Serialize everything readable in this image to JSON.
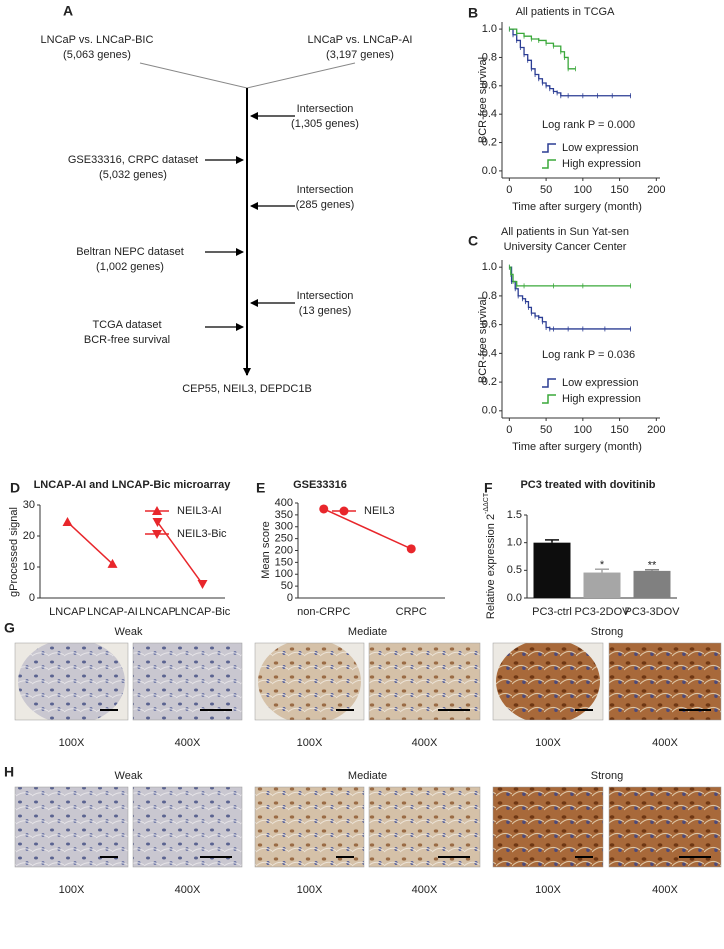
{
  "panel_a": {
    "label": "A",
    "nodes": [
      {
        "title": "LNCaP vs. LNCaP-BIC",
        "detail": "(5,063 genes)"
      },
      {
        "title": "LNCaP vs. LNCaP-AI",
        "detail": "(3,197 genes)"
      },
      {
        "title": "Intersection",
        "detail": "(1,305 genes)"
      },
      {
        "title": "GSE33316, CRPC dataset",
        "detail": "(5,032 genes)"
      },
      {
        "title": "Intersection",
        "detail": "(285 genes)"
      },
      {
        "title": "Beltran NEPC dataset",
        "detail": "(1,002 genes)"
      },
      {
        "title": "Intersection",
        "detail": "(13 genes)"
      },
      {
        "title": "TCGA dataset",
        "detail": "BCR-free survival"
      }
    ],
    "result": "CEP55, NEIL3, DEPDC1B"
  },
  "chart_data": [
    {
      "type": "line",
      "step": true,
      "label": "B",
      "title": [
        "All patients in TCGA"
      ],
      "xlabel": "Time after surgery (month)",
      "ylabel": "BCR-free survival",
      "annotation": "Log rank P = 0.000",
      "xlim": [
        -10,
        205
      ],
      "xticks": [
        0,
        50,
        100,
        150,
        200
      ],
      "ylim": [
        -0.05,
        1.05
      ],
      "yticks": [
        {
          "value": 0,
          "label": "0.0"
        },
        0.2,
        0.4,
        0.6,
        0.8,
        {
          "value": 1,
          "label": "1.0"
        }
      ],
      "series": [
        {
          "name": "Low expression",
          "color": "#2b3d94",
          "x": [
            0,
            5,
            10,
            15,
            20,
            25,
            30,
            35,
            40,
            45,
            50,
            55,
            60,
            65,
            70,
            80,
            100,
            120,
            140,
            165
          ],
          "values": [
            1.0,
            0.96,
            0.92,
            0.87,
            0.82,
            0.78,
            0.72,
            0.68,
            0.65,
            0.62,
            0.6,
            0.58,
            0.56,
            0.55,
            0.53,
            0.53,
            0.53,
            0.53,
            0.53,
            0.53
          ]
        },
        {
          "name": "High expression",
          "color": "#3aa83a",
          "x": [
            0,
            10,
            20,
            30,
            40,
            50,
            60,
            70,
            75,
            80,
            90
          ],
          "values": [
            1.0,
            0.97,
            0.95,
            0.93,
            0.92,
            0.9,
            0.88,
            0.84,
            0.8,
            0.72,
            0.72
          ]
        }
      ]
    },
    {
      "type": "line",
      "step": true,
      "label": "C",
      "title": [
        "All patients in Sun Yat-sen",
        "University Cancer Center"
      ],
      "xlabel": "Time after surgery (month)",
      "ylabel": "BCR-free survival",
      "annotation": "Log rank P = 0.036",
      "xlim": [
        -10,
        205
      ],
      "xticks": [
        0,
        50,
        100,
        150,
        200
      ],
      "ylim": [
        -0.05,
        1.05
      ],
      "yticks": [
        {
          "value": 0,
          "label": "0.0"
        },
        0.2,
        0.4,
        0.6,
        0.8,
        {
          "value": 1,
          "label": "1.0"
        }
      ],
      "series": [
        {
          "name": "Low expression",
          "color": "#2b3d94",
          "x": [
            0,
            3,
            8,
            12,
            18,
            22,
            26,
            30,
            35,
            40,
            45,
            50,
            55,
            60,
            80,
            100,
            130,
            165
          ],
          "values": [
            1.0,
            0.9,
            0.85,
            0.8,
            0.78,
            0.76,
            0.72,
            0.68,
            0.66,
            0.65,
            0.62,
            0.58,
            0.57,
            0.57,
            0.57,
            0.57,
            0.57,
            0.57
          ]
        },
        {
          "name": "High expression",
          "color": "#3aa83a",
          "x": [
            0,
            2,
            5,
            10,
            20,
            60,
            100,
            165
          ],
          "values": [
            1.0,
            0.95,
            0.9,
            0.87,
            0.87,
            0.87,
            0.87,
            0.87
          ]
        }
      ]
    },
    {
      "type": "line",
      "label": "D",
      "title": [
        "LNCAP-AI and LNCAP-Bic microarray"
      ],
      "ylabel": "gProcessed signal",
      "categories": [
        "LNCAP",
        "LNCAP-AI",
        "LNCAP",
        "LNCAP-Bic"
      ],
      "ylim": [
        0,
        30
      ],
      "yticks": [
        0,
        10,
        20,
        30
      ],
      "series": [
        {
          "name": "NEIL3-AI",
          "color": "#e8262b",
          "marker": "triangle-up",
          "values": [
            24.5,
            11,
            null,
            null
          ]
        },
        {
          "name": "NEIL3-Bic",
          "color": "#e8262b",
          "marker": "triangle-down",
          "values": [
            null,
            null,
            24.5,
            4.5
          ]
        }
      ]
    },
    {
      "type": "line",
      "label": "E",
      "title": [
        "GSE33316"
      ],
      "ylabel": "Mean score",
      "categories": [
        "non-CRPC",
        "CRPC"
      ],
      "ylim": [
        0,
        400
      ],
      "yticks": [
        0,
        50,
        100,
        150,
        200,
        250,
        300,
        350,
        400
      ],
      "series": [
        {
          "name": "NEIL3",
          "color": "#e8262b",
          "marker": "circle",
          "values": [
            375,
            207
          ]
        }
      ]
    },
    {
      "type": "bar",
      "label": "F",
      "title": [
        "PC3 treated with dovitinib"
      ],
      "ylabel": "Relative expression 2",
      "ylabel_exponent": "-ΔΔCT",
      "categories": [
        "PC3-ctrl",
        "PC3-2DOV",
        "PC3-3DOV"
      ],
      "values": [
        1.0,
        0.46,
        0.49
      ],
      "errors": [
        0.05,
        0.06,
        0.02
      ],
      "colors": [
        "#0d0d0d",
        "#a6a6a6",
        "#808080"
      ],
      "significance": [
        null,
        "*",
        "**"
      ],
      "ylim": [
        0,
        1.5
      ],
      "yticks": [
        {
          "value": 0,
          "label": "0.0"
        },
        0.5,
        {
          "value": 1,
          "label": "1.0"
        },
        1.5
      ]
    }
  ],
  "image_panels": [
    {
      "label": "G",
      "groups": [
        {
          "title": "Weak",
          "magnifications": [
            "100X",
            "400X"
          ]
        },
        {
          "title": "Mediate",
          "magnifications": [
            "100X",
            "400X"
          ]
        },
        {
          "title": "Strong",
          "magnifications": [
            "100X",
            "400X"
          ]
        }
      ]
    },
    {
      "label": "H",
      "groups": [
        {
          "title": "Weak",
          "magnifications": [
            "100X",
            "400X"
          ]
        },
        {
          "title": "Mediate",
          "magnifications": [
            "100X",
            "400X"
          ]
        },
        {
          "title": "Strong",
          "magnifications": [
            "100X",
            "400X"
          ]
        }
      ]
    }
  ]
}
